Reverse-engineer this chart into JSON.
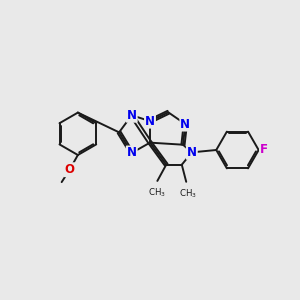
{
  "bg_color": "#e9e9e9",
  "bond_color": "#1a1a1a",
  "nitrogen_color": "#0000ee",
  "oxygen_color": "#dd0000",
  "fluorine_color": "#cc00cc",
  "bond_width": 1.4,
  "font_size_atom": 8.5,
  "fig_size": [
    3.0,
    3.0
  ],
  "dpi": 100,
  "xlim": [
    0,
    10
  ],
  "ylim": [
    0,
    10
  ]
}
